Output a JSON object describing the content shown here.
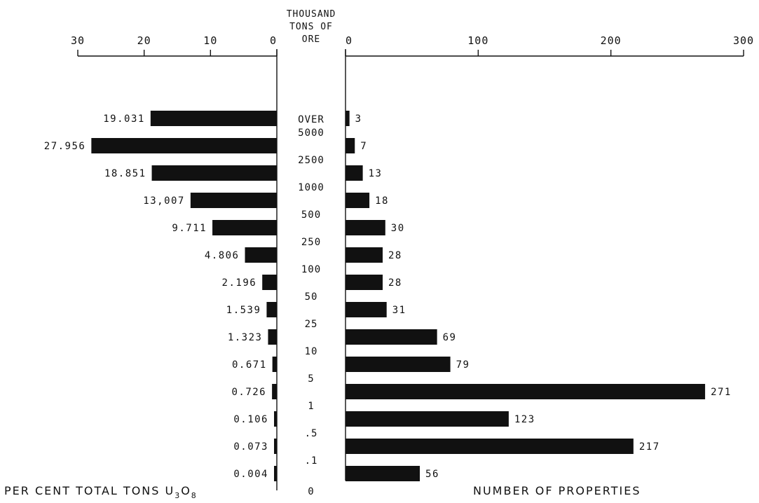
{
  "chart_data": {
    "type": "bar",
    "orientation": "horizontal",
    "layout": "back-to-back",
    "center_header": [
      "THOUSAND",
      "TONS OF",
      "ORE"
    ],
    "center_boundaries": [
      "OVER",
      "5000",
      "2500",
      "1000",
      "500",
      "250",
      "100",
      "50",
      "25",
      "10",
      "5",
      "1",
      ".5",
      ".1",
      "0"
    ],
    "left": {
      "label": "PER CENT TOTAL TONS U",
      "label_sub": [
        "3",
        "8"
      ],
      "label_mid": "O",
      "xlim": [
        30,
        0
      ],
      "ticks": [
        "30",
        "20",
        "10",
        "0"
      ],
      "values": [
        19.031,
        27.956,
        18.851,
        13.007,
        9.711,
        4.806,
        2.196,
        1.539,
        1.323,
        0.671,
        0.726,
        0.106,
        0.073,
        0.004
      ],
      "value_labels": [
        "19.031",
        "27.956",
        "18.851",
        "13,007",
        "9.711",
        "4.806",
        "2.196",
        "1.539",
        "1.323",
        "0.671",
        "0.726",
        "0.106",
        "0.073",
        "0.004"
      ]
    },
    "right": {
      "label": "NUMBER OF PROPERTIES",
      "xlim": [
        0,
        300
      ],
      "ticks": [
        "0",
        "100",
        "200",
        "300"
      ],
      "values": [
        3,
        7,
        13,
        18,
        30,
        28,
        28,
        31,
        69,
        79,
        271,
        123,
        217,
        56
      ],
      "value_labels": [
        "3",
        "7",
        "13",
        "18",
        "30",
        "28",
        "28",
        "31",
        "69",
        "79",
        "271",
        "123",
        "217",
        "56"
      ]
    }
  }
}
